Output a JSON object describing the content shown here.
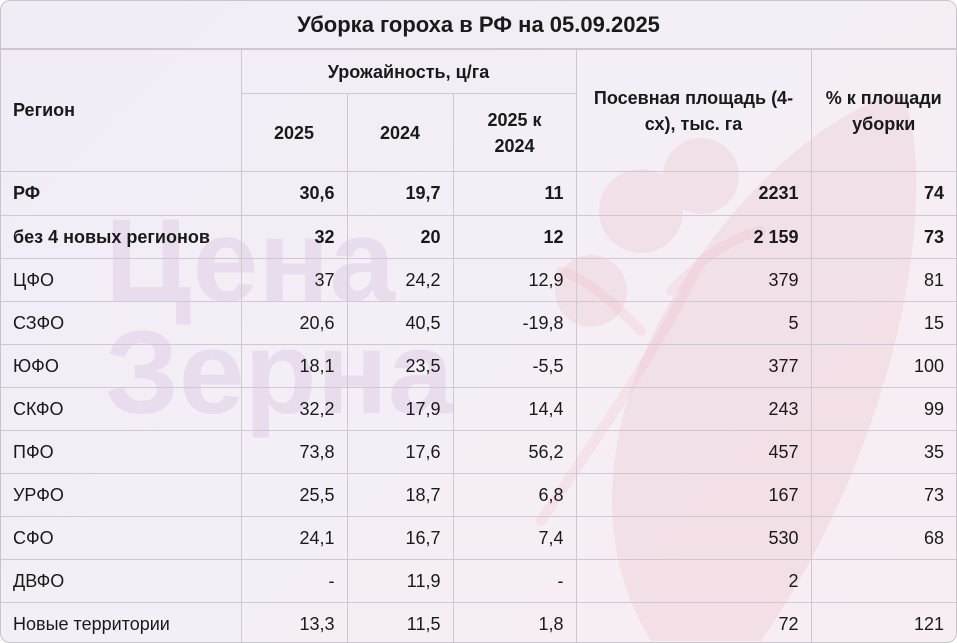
{
  "chart_data": {
    "type": "table",
    "title": "Уборка гороха в РФ на 05.09.2025",
    "headers": {
      "region": "Регион",
      "yield_group": "Урожайность, ц/га",
      "y2025": "2025",
      "y2024": "2024",
      "diff": "2025 к 2024",
      "area": "Посевная площадь (4-сх), тыс. га",
      "pct": "% к площади уборки"
    },
    "rows": [
      {
        "region": "РФ",
        "y2025": "30,6",
        "y2024": "19,7",
        "diff": "11",
        "area": "2231",
        "pct": "74",
        "bold": true
      },
      {
        "region": "без 4 новых регионов",
        "y2025": "32",
        "y2024": "20",
        "diff": "12",
        "area": "2 159",
        "pct": "73",
        "bold": true
      },
      {
        "region": "ЦФО",
        "y2025": "37",
        "y2024": "24,2",
        "diff": "12,9",
        "area": "379",
        "pct": "81",
        "bold": false
      },
      {
        "region": "СЗФО",
        "y2025": "20,6",
        "y2024": "40,5",
        "diff": "-19,8",
        "area": "5",
        "pct": "15",
        "bold": false
      },
      {
        "region": "ЮФО",
        "y2025": "18,1",
        "y2024": "23,5",
        "diff": "-5,5",
        "area": "377",
        "pct": "100",
        "bold": false
      },
      {
        "region": "СКФО",
        "y2025": "32,2",
        "y2024": "17,9",
        "diff": "14,4",
        "area": "243",
        "pct": "99",
        "bold": false
      },
      {
        "region": "ПФО",
        "y2025": "73,8",
        "y2024": "17,6",
        "diff": "56,2",
        "area": "457",
        "pct": "35",
        "bold": false
      },
      {
        "region": "УРФО",
        "y2025": "25,5",
        "y2024": "18,7",
        "diff": "6,8",
        "area": "167",
        "pct": "73",
        "bold": false
      },
      {
        "region": "СФО",
        "y2025": "24,1",
        "y2024": "16,7",
        "diff": "7,4",
        "area": "530",
        "pct": "68",
        "bold": false
      },
      {
        "region": "ДВФО",
        "y2025": "-",
        "y2024": "11,9",
        "diff": "-",
        "area": "2",
        "pct": "",
        "bold": false
      },
      {
        "region": "Новые территории",
        "y2025": "13,3",
        "y2024": "11,5",
        "diff": "1,8",
        "area": "72",
        "pct": "121",
        "bold": false
      }
    ]
  },
  "watermark": {
    "line1": "Цена",
    "line2": "Зерна",
    "color": "#b48fc6"
  }
}
